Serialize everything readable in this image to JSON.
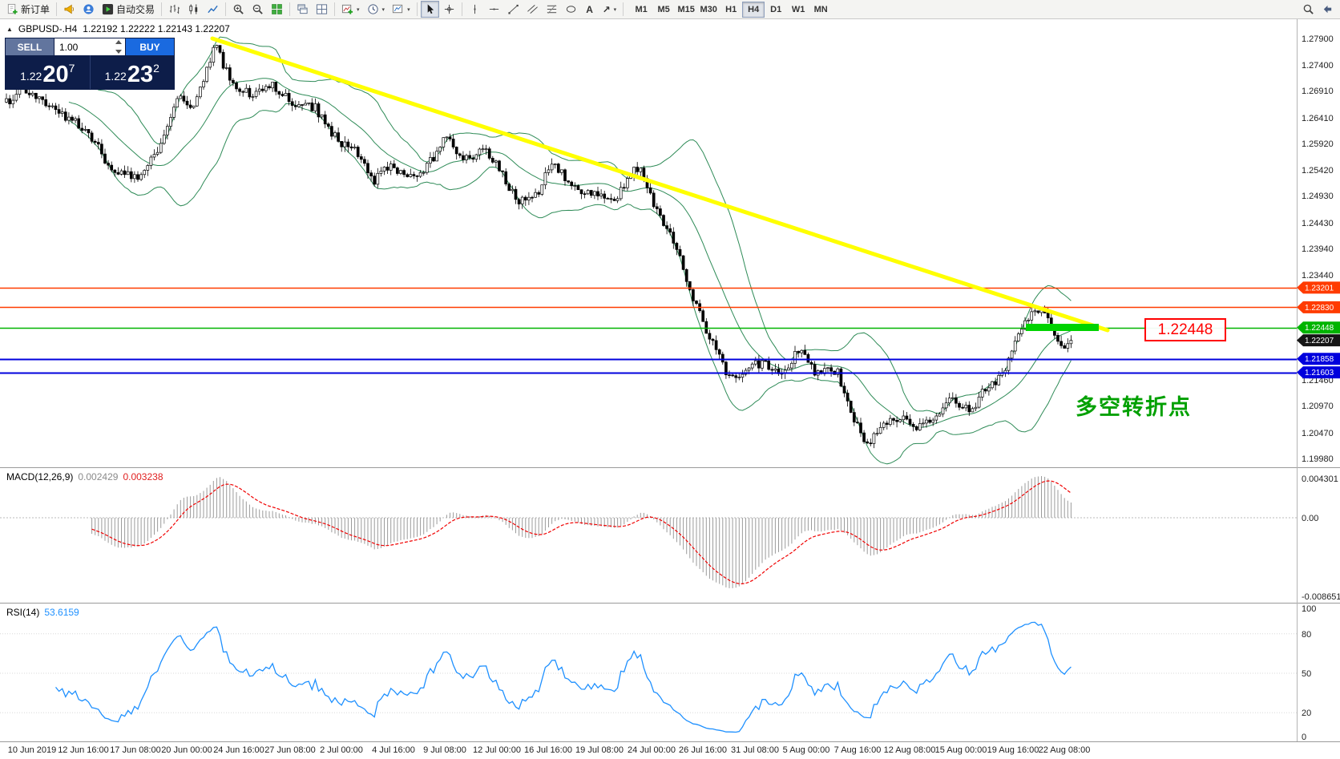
{
  "toolbar": {
    "new_order_label": "新订单",
    "auto_trading_label": "自动交易",
    "timeframes": [
      "M1",
      "M5",
      "M15",
      "M30",
      "H1",
      "H4",
      "D1",
      "W1",
      "MN"
    ],
    "active_timeframe": "H4"
  },
  "icons": {
    "caret": "▾",
    "collapse": "▲",
    "text_tool": "A",
    "arrow_tool": "↗"
  },
  "symbol_info": {
    "symbol": "GBPUSD-.H4",
    "ohlc": "1.22192 1.22222 1.22143 1.22207"
  },
  "one_click": {
    "sell_label": "SELL",
    "buy_label": "BUY",
    "volume": "1.00",
    "bid_small": "1.22",
    "bid_big": "20",
    "bid_sup": "7",
    "ask_small": "1.22",
    "ask_big": "23",
    "ask_sup": "2"
  },
  "annotations": {
    "level_box": "1.22448",
    "turning_point": "多空转折点"
  },
  "chart_data": {
    "type": "candlestick",
    "symbol": "GBPUSD-",
    "timeframe": "H4",
    "ohlc_current": {
      "open": "1.22192",
      "high": "1.22222",
      "low": "1.22143",
      "close": "1.22207"
    },
    "last_price": 1.22207,
    "bar_count": 325,
    "price_axis": [
      "1.27900",
      "1.27400",
      "1.26910",
      "1.26410",
      "1.25920",
      "1.25420",
      "1.24930",
      "1.24430",
      "1.23940",
      "1.23440",
      "1.21460",
      "1.20970",
      "1.20470",
      "1.19980"
    ],
    "levels": [
      {
        "price": 1.23201,
        "label": "1.23201",
        "color": "#ff3b00",
        "line_width": 1.4
      },
      {
        "price": 1.2283,
        "label": "1.22830",
        "color": "#ff3b00",
        "line_width": 1.4
      },
      {
        "price": 1.22448,
        "label": "1.22448",
        "color": "#00b400",
        "line_width": 1.6
      },
      {
        "price": 1.22207,
        "label": "1.22207",
        "color": "#151515",
        "tag_only": true
      },
      {
        "price": 1.21858,
        "label": "1.21858",
        "color": "#0000dd",
        "line_width": 2
      },
      {
        "price": 1.21603,
        "label": "1.21603",
        "color": "#0000dd",
        "line_width": 2
      }
    ],
    "trendline": {
      "x1_frac": 0.164,
      "price1": 1.279,
      "x2_frac": 0.854,
      "price2": 1.224,
      "color": "#ffff00",
      "width": 5
    },
    "green_highlight": {
      "x1_frac": 0.791,
      "x2_frac": 0.847,
      "price": 1.22448,
      "color": "#00d300",
      "thickness": 9
    },
    "price_path": [
      [
        0.0,
        1.267
      ],
      [
        0.016,
        1.2695
      ],
      [
        0.045,
        1.2652
      ],
      [
        0.075,
        1.262
      ],
      [
        0.1,
        1.254
      ],
      [
        0.125,
        1.2532
      ],
      [
        0.14,
        1.2572
      ],
      [
        0.16,
        1.268
      ],
      [
        0.175,
        1.265
      ],
      [
        0.196,
        1.278
      ],
      [
        0.21,
        1.2712
      ],
      [
        0.23,
        1.268
      ],
      [
        0.25,
        1.27
      ],
      [
        0.27,
        1.2665
      ],
      [
        0.29,
        1.266
      ],
      [
        0.31,
        1.26
      ],
      [
        0.33,
        1.2575
      ],
      [
        0.345,
        1.252
      ],
      [
        0.36,
        1.2555
      ],
      [
        0.38,
        1.2525
      ],
      [
        0.4,
        1.256
      ],
      [
        0.412,
        1.2605
      ],
      [
        0.43,
        1.256
      ],
      [
        0.45,
        1.2585
      ],
      [
        0.465,
        1.2535
      ],
      [
        0.48,
        1.248
      ],
      [
        0.5,
        1.2505
      ],
      [
        0.512,
        1.256
      ],
      [
        0.53,
        1.2515
      ],
      [
        0.55,
        1.2495
      ],
      [
        0.57,
        1.248
      ],
      [
        0.585,
        1.253
      ],
      [
        0.595,
        1.255
      ],
      [
        0.61,
        1.2465
      ],
      [
        0.625,
        1.242
      ],
      [
        0.64,
        1.233
      ],
      [
        0.655,
        1.225
      ],
      [
        0.67,
        1.2185
      ],
      [
        0.68,
        1.215
      ],
      [
        0.695,
        1.2165
      ],
      [
        0.71,
        1.218
      ],
      [
        0.73,
        1.215
      ],
      [
        0.745,
        1.221
      ],
      [
        0.76,
        1.216
      ],
      [
        0.78,
        1.2165
      ],
      [
        0.8,
        1.2055
      ],
      [
        0.81,
        1.2025
      ],
      [
        0.825,
        1.2065
      ],
      [
        0.84,
        1.2075
      ],
      [
        0.86,
        1.2055
      ],
      [
        0.875,
        1.2085
      ],
      [
        0.89,
        1.211
      ],
      [
        0.905,
        1.2085
      ],
      [
        0.92,
        1.213
      ],
      [
        0.935,
        1.215
      ],
      [
        0.95,
        1.2225
      ],
      [
        0.962,
        1.227
      ],
      [
        0.97,
        1.2282
      ],
      [
        0.978,
        1.2258
      ],
      [
        0.985,
        1.2232
      ],
      [
        0.993,
        1.2207
      ],
      [
        1.0,
        1.2221
      ]
    ],
    "indicator_panels": {
      "macd": {
        "label": "MACD(12,26,9)",
        "values_text": [
          "0.002429",
          "0.003238"
        ],
        "axis": [
          "0.004301",
          "0.00",
          "-0.008651"
        ]
      },
      "rsi": {
        "label": "RSI(14)",
        "value_text": "53.6159",
        "axis": [
          "100",
          "80",
          "50",
          "20",
          "0"
        ],
        "levels": [
          80,
          50,
          20
        ]
      }
    },
    "time_labels": [
      "10 Jun 2019",
      "12 Jun 16:00",
      "17 Jun 08:00",
      "20 Jun 00:00",
      "24 Jun 16:00",
      "27 Jun 08:00",
      "2 Jul 00:00",
      "4 Jul 16:00",
      "9 Jul 08:00",
      "12 Jul 00:00",
      "16 Jul 16:00",
      "19 Jul 08:00",
      "24 Jul 00:00",
      "26 Jul 16:00",
      "31 Jul 08:00",
      "5 Aug 00:00",
      "7 Aug 16:00",
      "12 Aug 08:00",
      "15 Aug 00:00",
      "19 Aug 16:00",
      "22 Aug 08:00"
    ]
  }
}
